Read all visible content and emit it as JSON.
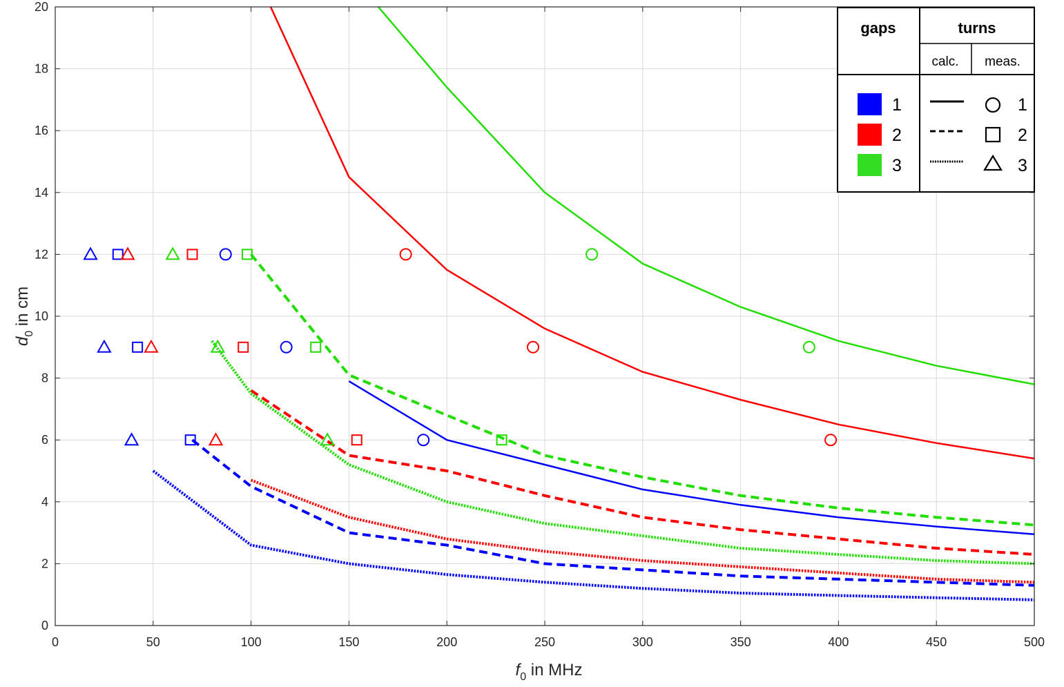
{
  "chart_data": {
    "type": "line",
    "xlabel_italic": "f",
    "xlabel_sub": "0",
    "xlabel_rest": " in MHz",
    "ylabel_italic": "d",
    "ylabel_sub": "0",
    "ylabel_rest": " in cm",
    "xlim": [
      0,
      500
    ],
    "ylim": [
      0,
      20
    ],
    "x_ticks": [
      "0",
      "50",
      "100",
      "150",
      "200",
      "250",
      "300",
      "350",
      "400",
      "450",
      "500"
    ],
    "y_ticks": [
      "0",
      "2",
      "4",
      "6",
      "8",
      "10",
      "12",
      "14",
      "16",
      "18",
      "20"
    ],
    "grid": true,
    "colors": {
      "1": "#0000ff",
      "2": "#ff0000",
      "3": "#22dd00"
    },
    "series": [
      {
        "gaps": 1,
        "turns": 1,
        "points": [
          [
            150,
            7.9
          ],
          [
            200,
            6.0
          ],
          [
            250,
            5.2
          ],
          [
            300,
            4.4
          ],
          [
            350,
            3.9
          ],
          [
            400,
            3.5
          ],
          [
            450,
            3.2
          ],
          [
            500,
            2.95
          ]
        ]
      },
      {
        "gaps": 1,
        "turns": 2,
        "points": [
          [
            70,
            6.0
          ],
          [
            100,
            4.5
          ],
          [
            150,
            3.0
          ],
          [
            200,
            2.6
          ],
          [
            250,
            2.0
          ],
          [
            300,
            1.8
          ],
          [
            350,
            1.6
          ],
          [
            400,
            1.5
          ],
          [
            450,
            1.4
          ],
          [
            500,
            1.3
          ]
        ]
      },
      {
        "gaps": 1,
        "turns": 3,
        "points": [
          [
            50,
            5.0
          ],
          [
            100,
            2.6
          ],
          [
            150,
            2.0
          ],
          [
            200,
            1.65
          ],
          [
            250,
            1.4
          ],
          [
            300,
            1.2
          ],
          [
            350,
            1.05
          ],
          [
            400,
            0.97
          ],
          [
            450,
            0.9
          ],
          [
            500,
            0.83
          ]
        ]
      },
      {
        "gaps": 2,
        "turns": 1,
        "points": [
          [
            110,
            20
          ],
          [
            150,
            14.5
          ],
          [
            200,
            11.5
          ],
          [
            250,
            9.6
          ],
          [
            300,
            8.2
          ],
          [
            350,
            7.3
          ],
          [
            400,
            6.5
          ],
          [
            450,
            5.9
          ],
          [
            500,
            5.4
          ]
        ]
      },
      {
        "gaps": 2,
        "turns": 2,
        "points": [
          [
            100,
            7.6
          ],
          [
            150,
            5.5
          ],
          [
            200,
            5.0
          ],
          [
            250,
            4.2
          ],
          [
            300,
            3.5
          ],
          [
            350,
            3.1
          ],
          [
            400,
            2.8
          ],
          [
            450,
            2.5
          ],
          [
            500,
            2.3
          ]
        ]
      },
      {
        "gaps": 2,
        "turns": 3,
        "points": [
          [
            100,
            4.7
          ],
          [
            150,
            3.5
          ],
          [
            200,
            2.8
          ],
          [
            250,
            2.4
          ],
          [
            300,
            2.1
          ],
          [
            350,
            1.9
          ],
          [
            400,
            1.7
          ],
          [
            450,
            1.5
          ],
          [
            500,
            1.4
          ]
        ]
      },
      {
        "gaps": 3,
        "turns": 1,
        "points": [
          [
            165,
            20
          ],
          [
            200,
            17.4
          ],
          [
            250,
            14.0
          ],
          [
            300,
            11.7
          ],
          [
            350,
            10.3
          ],
          [
            400,
            9.2
          ],
          [
            450,
            8.4
          ],
          [
            500,
            7.8
          ]
        ]
      },
      {
        "gaps": 3,
        "turns": 2,
        "points": [
          [
            100,
            12.0
          ],
          [
            150,
            8.1
          ],
          [
            200,
            6.8
          ],
          [
            250,
            5.5
          ],
          [
            300,
            4.8
          ],
          [
            350,
            4.2
          ],
          [
            400,
            3.8
          ],
          [
            450,
            3.5
          ],
          [
            500,
            3.25
          ]
        ]
      },
      {
        "gaps": 3,
        "turns": 3,
        "points": [
          [
            80,
            9.2
          ],
          [
            100,
            7.5
          ],
          [
            150,
            5.2
          ],
          [
            200,
            4.0
          ],
          [
            250,
            3.3
          ],
          [
            300,
            2.9
          ],
          [
            350,
            2.5
          ],
          [
            400,
            2.3
          ],
          [
            450,
            2.1
          ],
          [
            500,
            2.0
          ]
        ]
      }
    ],
    "measurements": [
      {
        "gaps": 1,
        "turns": 1,
        "points": [
          [
            87,
            12
          ],
          [
            118,
            9
          ],
          [
            188,
            6
          ]
        ]
      },
      {
        "gaps": 1,
        "turns": 2,
        "points": [
          [
            32,
            12
          ],
          [
            42,
            9
          ],
          [
            69,
            6
          ]
        ]
      },
      {
        "gaps": 1,
        "turns": 3,
        "points": [
          [
            18,
            12
          ],
          [
            25,
            9
          ],
          [
            39,
            6
          ]
        ]
      },
      {
        "gaps": 2,
        "turns": 1,
        "points": [
          [
            179,
            12
          ],
          [
            244,
            9
          ],
          [
            396,
            6
          ]
        ]
      },
      {
        "gaps": 2,
        "turns": 2,
        "points": [
          [
            70,
            12
          ],
          [
            96,
            9
          ],
          [
            154,
            6
          ]
        ]
      },
      {
        "gaps": 2,
        "turns": 3,
        "points": [
          [
            37,
            12
          ],
          [
            49,
            9
          ],
          [
            82,
            6
          ]
        ]
      },
      {
        "gaps": 3,
        "turns": 1,
        "points": [
          [
            274,
            12
          ],
          [
            385,
            9
          ]
        ]
      },
      {
        "gaps": 3,
        "turns": 2,
        "points": [
          [
            98,
            12
          ],
          [
            133,
            9
          ],
          [
            228,
            6
          ]
        ]
      },
      {
        "gaps": 3,
        "turns": 3,
        "points": [
          [
            60,
            12
          ],
          [
            83,
            9
          ],
          [
            139,
            6
          ]
        ]
      }
    ],
    "legend": {
      "gaps_header": "gaps",
      "turns_header": "turns",
      "calc_header": "calc.",
      "meas_header": "meas.",
      "gap_labels": [
        "1",
        "2",
        "3"
      ],
      "turn_labels": [
        "1",
        "2",
        "3"
      ],
      "placement": "top-right"
    }
  }
}
